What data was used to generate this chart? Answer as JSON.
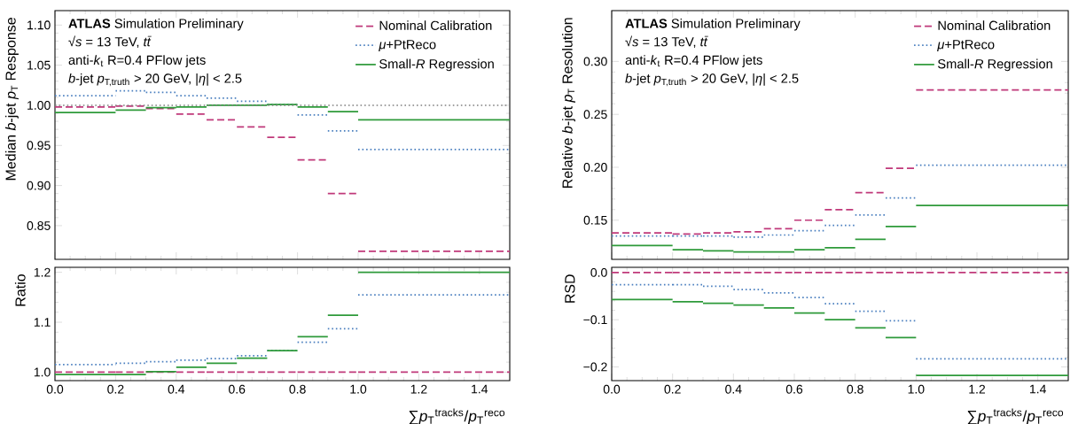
{
  "chart_data": [
    {
      "type": "line",
      "ylabel": "Median *b*-jet *p*$_{T}$ Response",
      "marker": "none",
      "x": [
        0.0,
        0.2,
        null,
        0.2,
        0.3,
        null,
        0.3,
        0.4,
        null,
        0.4,
        0.5,
        null,
        0.5,
        0.6,
        null,
        0.6,
        0.7,
        null,
        0.7,
        0.8,
        null,
        0.8,
        0.9,
        null,
        0.9,
        1.0,
        null,
        1.0,
        1.5
      ],
      "series": [
        {
          "name": "Nominal Calibration",
          "color": "#c0397a",
          "line_style": "dashed",
          "values": [
            0.998,
            0.998,
            null,
            0.999,
            0.999,
            null,
            0.996,
            0.996,
            null,
            0.989,
            0.989,
            null,
            0.982,
            0.982,
            null,
            0.973,
            0.973,
            null,
            0.96,
            0.96,
            null,
            0.932,
            0.932,
            null,
            0.89,
            0.89,
            null,
            0.818,
            0.818
          ]
        },
        {
          "name": "*μ*+PtReco",
          "color": "#4a7fbf",
          "line_style": "dotted",
          "values": [
            1.012,
            1.012,
            null,
            1.018,
            1.018,
            null,
            1.016,
            1.016,
            null,
            1.012,
            1.012,
            null,
            1.009,
            1.009,
            null,
            1.005,
            1.005,
            null,
            1.001,
            1.001,
            null,
            0.988,
            0.988,
            null,
            0.968,
            0.968,
            null,
            0.945,
            0.945
          ]
        },
        {
          "name": "Small-*R* Regression",
          "color": "#2e9a3a",
          "line_style": "solid",
          "values": [
            0.991,
            0.991,
            null,
            0.994,
            0.994,
            null,
            0.997,
            0.997,
            null,
            0.998,
            0.998,
            null,
            1.0,
            1.0,
            null,
            1.0,
            1.0,
            null,
            1.001,
            1.001,
            null,
            0.998,
            0.998,
            null,
            0.992,
            0.992,
            null,
            0.982,
            0.982
          ]
        }
      ],
      "ref_lines": [
        {
          "axis": "y",
          "value": 1.0,
          "color": "#808080",
          "line_style": "dotted"
        }
      ],
      "annotations": [
        "**ATLAS** Simulation Preliminary",
        "√*s* = 13 TeV, *tt̄*",
        "anti-*k*$_{t}$ R=0.4 PFlow jets",
        "*b*-jet *p*$_{T,truth}$ > 20 GeV, |*η*| < 2.5"
      ],
      "xlim": [
        0.0,
        1.5
      ],
      "xticks": [
        {
          "value": 0.0,
          "label": null
        },
        {
          "value": 0.2,
          "label": null
        },
        {
          "value": 0.4,
          "label": null
        },
        {
          "value": 0.6,
          "label": null
        },
        {
          "value": 0.8,
          "label": null
        },
        {
          "value": 1.0,
          "label": null
        },
        {
          "value": 1.2,
          "label": null
        },
        {
          "value": 1.4,
          "label": null
        }
      ],
      "ylim": [
        0.808,
        1.118
      ],
      "yticks": [
        0.85,
        {
          "value": 0.9,
          "label": "0.90"
        },
        0.95,
        {
          "value": 1.0,
          "label": "1.00"
        },
        1.05,
        {
          "value": 1.1,
          "label": "1.10"
        }
      ],
      "tick_labels": "y",
      "legend": "top right"
    },
    {
      "type": "line",
      "ylabel": "Relative *b*-jet *p*$_{T}$ Resolution",
      "marker": "none",
      "x": [
        0.0,
        0.2,
        null,
        0.2,
        0.3,
        null,
        0.3,
        0.4,
        null,
        0.4,
        0.5,
        null,
        0.5,
        0.6,
        null,
        0.6,
        0.7,
        null,
        0.7,
        0.8,
        null,
        0.8,
        0.9,
        null,
        0.9,
        1.0,
        null,
        1.0,
        1.5
      ],
      "series": [
        {
          "name": "Nominal Calibration",
          "color": "#c0397a",
          "line_style": "dashed",
          "values": [
            0.138,
            0.138,
            null,
            0.137,
            0.137,
            null,
            0.138,
            0.138,
            null,
            0.139,
            0.139,
            null,
            0.142,
            0.142,
            null,
            0.15,
            0.15,
            null,
            0.16,
            0.16,
            null,
            0.176,
            0.176,
            null,
            0.199,
            0.199,
            null,
            0.273,
            0.273
          ]
        },
        {
          "name": "*μ*+PtReco",
          "color": "#4a7fbf",
          "line_style": "dotted",
          "values": [
            0.135,
            0.135,
            null,
            0.135,
            0.135,
            null,
            0.135,
            0.135,
            null,
            0.134,
            0.134,
            null,
            0.136,
            0.136,
            null,
            0.14,
            0.14,
            null,
            0.145,
            0.145,
            null,
            0.155,
            0.155,
            null,
            0.171,
            0.171,
            null,
            0.202,
            0.202
          ]
        },
        {
          "name": "Small-*R* Regression",
          "color": "#2e9a3a",
          "line_style": "solid",
          "values": [
            0.126,
            0.126,
            null,
            0.122,
            0.122,
            null,
            0.121,
            0.121,
            null,
            0.12,
            0.12,
            null,
            0.12,
            0.12,
            null,
            0.122,
            0.122,
            null,
            0.124,
            0.124,
            null,
            0.132,
            0.132,
            null,
            0.144,
            0.144,
            null,
            0.164,
            0.164
          ]
        }
      ],
      "annotations": [
        "**ATLAS** Simulation Preliminary",
        "√*s* = 13 TeV, *tt̄*",
        "anti-*k*$_{t}$ R=0.4 PFlow jets",
        "*b*-jet *p*$_{T,truth}$ > 20 GeV, |*η*| < 2.5"
      ],
      "xlim": [
        0.0,
        1.5
      ],
      "xticks": [
        {
          "value": 0.0,
          "label": null
        },
        {
          "value": 0.2,
          "label": null
        },
        {
          "value": 0.4,
          "label": null
        },
        {
          "value": 0.6,
          "label": null
        },
        {
          "value": 0.8,
          "label": null
        },
        {
          "value": 1.0,
          "label": null
        },
        {
          "value": 1.2,
          "label": null
        },
        {
          "value": 1.4,
          "label": null
        }
      ],
      "ylim": [
        0.113,
        0.348
      ],
      "yticks": [
        0.15,
        {
          "value": 0.2,
          "label": "0.20"
        },
        0.25,
        {
          "value": 0.3,
          "label": "0.30"
        }
      ],
      "tick_labels": "y",
      "legend": "top right"
    },
    {
      "type": "line",
      "ylabel": "Ratio",
      "xlabel": "∑*p*$_{T}$$^{tracks}$/*p*$_{T}$$^{reco}$",
      "marker": "none",
      "x": [
        0.0,
        0.2,
        null,
        0.2,
        0.3,
        null,
        0.3,
        0.4,
        null,
        0.4,
        0.5,
        null,
        0.5,
        0.6,
        null,
        0.6,
        0.7,
        null,
        0.7,
        0.8,
        null,
        0.8,
        0.9,
        null,
        0.9,
        1.0,
        null,
        1.0,
        1.5
      ],
      "series": [
        {
          "color": "#c0397a",
          "line_style": "dashed",
          "values": [
            1.0,
            1.0,
            null,
            1.0,
            1.0,
            null,
            1.0,
            1.0,
            null,
            1.0,
            1.0,
            null,
            1.0,
            1.0,
            null,
            1.0,
            1.0,
            null,
            1.0,
            1.0,
            null,
            1.0,
            1.0,
            null,
            1.0,
            1.0,
            null,
            1.0,
            1.0
          ]
        },
        {
          "color": "#4a7fbf",
          "line_style": "dotted",
          "values": [
            1.015,
            1.015,
            null,
            1.018,
            1.018,
            null,
            1.021,
            1.021,
            null,
            1.024,
            1.024,
            null,
            1.027,
            1.027,
            null,
            1.033,
            1.033,
            null,
            1.043,
            1.043,
            null,
            1.06,
            1.06,
            null,
            1.087,
            1.087,
            null,
            1.155,
            1.155
          ]
        },
        {
          "color": "#2e9a3a",
          "line_style": "solid",
          "values": [
            0.995,
            0.995,
            null,
            0.995,
            0.995,
            null,
            1.001,
            1.001,
            null,
            1.01,
            1.01,
            null,
            1.018,
            1.018,
            null,
            1.028,
            1.028,
            null,
            1.043,
            1.043,
            null,
            1.071,
            1.071,
            null,
            1.114,
            1.114,
            null,
            1.2,
            1.2
          ]
        }
      ],
      "xlim": [
        0.0,
        1.5
      ],
      "xticks": [
        {
          "value": 0.0,
          "label": "0.0"
        },
        0.2,
        0.4,
        0.6,
        0.8,
        {
          "value": 1.0,
          "label": "1.0"
        },
        1.2,
        1.4
      ],
      "ylim": [
        0.983,
        1.21
      ],
      "yticks": [
        {
          "value": 1.0,
          "label": "1.0"
        },
        1.1,
        1.2
      ]
    },
    {
      "type": "line",
      "ylabel": "RSD",
      "xlabel": "∑*p*$_{T}$$^{tracks}$/*p*$_{T}$$^{reco}$",
      "marker": "none",
      "x": [
        0.0,
        0.2,
        null,
        0.2,
        0.3,
        null,
        0.3,
        0.4,
        null,
        0.4,
        0.5,
        null,
        0.5,
        0.6,
        null,
        0.6,
        0.7,
        null,
        0.7,
        0.8,
        null,
        0.8,
        0.9,
        null,
        0.9,
        1.0,
        null,
        1.0,
        1.5
      ],
      "series": [
        {
          "color": "#c0397a",
          "line_style": "dashed",
          "values": [
            0.0,
            0.0,
            null,
            0.0,
            0.0,
            null,
            0.0,
            0.0,
            null,
            0.0,
            0.0,
            null,
            0.0,
            0.0,
            null,
            0.0,
            0.0,
            null,
            0.0,
            0.0,
            null,
            0.0,
            0.0,
            null,
            0.0,
            0.0,
            null,
            0.0,
            0.0
          ]
        },
        {
          "color": "#4a7fbf",
          "line_style": "dotted",
          "values": [
            -0.026,
            -0.026,
            null,
            -0.026,
            -0.026,
            null,
            -0.029,
            -0.029,
            null,
            -0.036,
            -0.036,
            null,
            -0.043,
            -0.043,
            null,
            -0.053,
            -0.053,
            null,
            -0.066,
            -0.066,
            null,
            -0.082,
            -0.082,
            null,
            -0.102,
            -0.102,
            null,
            -0.183,
            -0.183
          ]
        },
        {
          "color": "#2e9a3a",
          "line_style": "solid",
          "values": [
            -0.057,
            -0.057,
            null,
            -0.062,
            -0.062,
            null,
            -0.065,
            -0.065,
            null,
            -0.069,
            -0.069,
            null,
            -0.075,
            -0.075,
            null,
            -0.086,
            -0.086,
            null,
            -0.1,
            -0.1,
            null,
            -0.117,
            -0.117,
            null,
            -0.138,
            -0.138,
            null,
            -0.218,
            -0.218
          ]
        }
      ],
      "xlim": [
        0.0,
        1.5
      ],
      "xticks": [
        {
          "value": 0.0,
          "label": "0.0"
        },
        0.2,
        0.4,
        0.6,
        0.8,
        {
          "value": 1.0,
          "label": "1.0"
        },
        1.2,
        1.4
      ],
      "ylim": [
        -0.229,
        0.011
      ],
      "yticks": [
        {
          "value": -0.2,
          "label": "−0.2"
        },
        {
          "value": -0.1,
          "label": "−0.1"
        },
        {
          "value": 0.0,
          "label": "0.0"
        }
      ]
    }
  ]
}
